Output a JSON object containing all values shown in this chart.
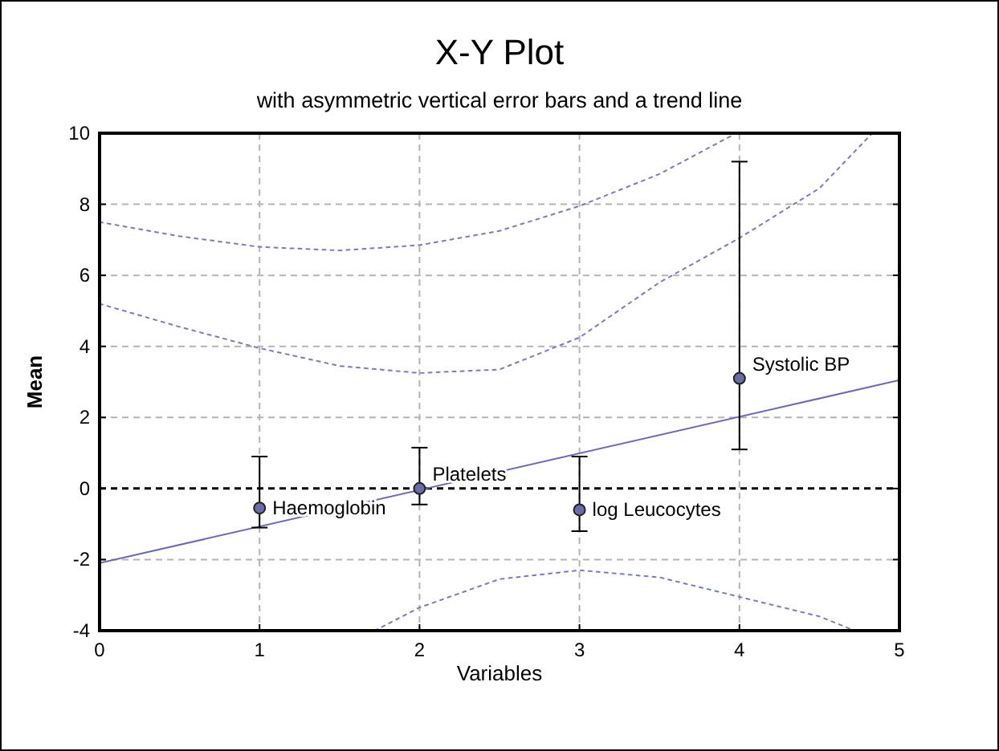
{
  "chart_data": {
    "type": "scatter",
    "title": "X-Y Plot",
    "subtitle": "with asymmetric vertical error bars and a trend line",
    "xlabel": "Variables",
    "ylabel": "Mean",
    "xlim": [
      0,
      5
    ],
    "ylim": [
      -4,
      10
    ],
    "xticks": [
      0,
      1,
      2,
      3,
      4,
      5
    ],
    "yticks": [
      -4,
      -2,
      0,
      2,
      4,
      6,
      8,
      10
    ],
    "grid": true,
    "series": [
      {
        "color": "#6b6ba8",
        "marker": "circle",
        "x": [
          1,
          2,
          3,
          4
        ],
        "values": [
          -0.55,
          0,
          -0.6,
          3.1
        ],
        "errors": [
          [
            -1.1,
            0.9
          ],
          [
            -0.45,
            1.15
          ],
          [
            -1.2,
            0.9
          ],
          [
            1.1,
            9.2
          ]
        ]
      },
      {
        "type": "line",
        "color": "#6b6bb5",
        "line_style": "solid",
        "x": [
          0,
          5
        ],
        "values": [
          -2.1,
          3.05
        ]
      },
      {
        "type": "line",
        "color": "#7a7ac0",
        "line_style": "dotted",
        "x": [
          0,
          0.5,
          1,
          1.5,
          2,
          2.5,
          3,
          3.5,
          4,
          4.5,
          4.83
        ],
        "values": [
          5.2,
          4.55,
          3.95,
          3.45,
          3.25,
          3.35,
          4.25,
          5.8,
          7.05,
          8.45,
          10
        ]
      },
      {
        "type": "line",
        "color": "#7a7ac0",
        "line_style": "dotted",
        "x": [
          1.72,
          2,
          2.5,
          3,
          3.5,
          4,
          4.5,
          4.72
        ],
        "values": [
          -4,
          -3.35,
          -2.55,
          -2.3,
          -2.5,
          -3.05,
          -3.6,
          -4
        ]
      },
      {
        "type": "line",
        "color": "#7a7ac0",
        "line_style": "dotted",
        "x": [
          0,
          0.5,
          1,
          1.5,
          2,
          2.5,
          3,
          3.5,
          3.98
        ],
        "values": [
          7.5,
          7.1,
          6.8,
          6.7,
          6.85,
          7.25,
          7.95,
          8.85,
          10
        ]
      }
    ],
    "ref_lines": [
      {
        "axis": "y",
        "value": 0,
        "color": "#000000",
        "line_style": "dashed"
      }
    ],
    "annotations": [
      {
        "text": "Haemoglobin",
        "x": 1,
        "y": -0.55
      },
      {
        "text": "Platelets",
        "x": 2,
        "y": 0
      },
      {
        "text": "log Leucocytes",
        "x": 3,
        "y": -0.6
      },
      {
        "text": "Systolic BP",
        "x": 4,
        "y": 3.1
      }
    ]
  }
}
